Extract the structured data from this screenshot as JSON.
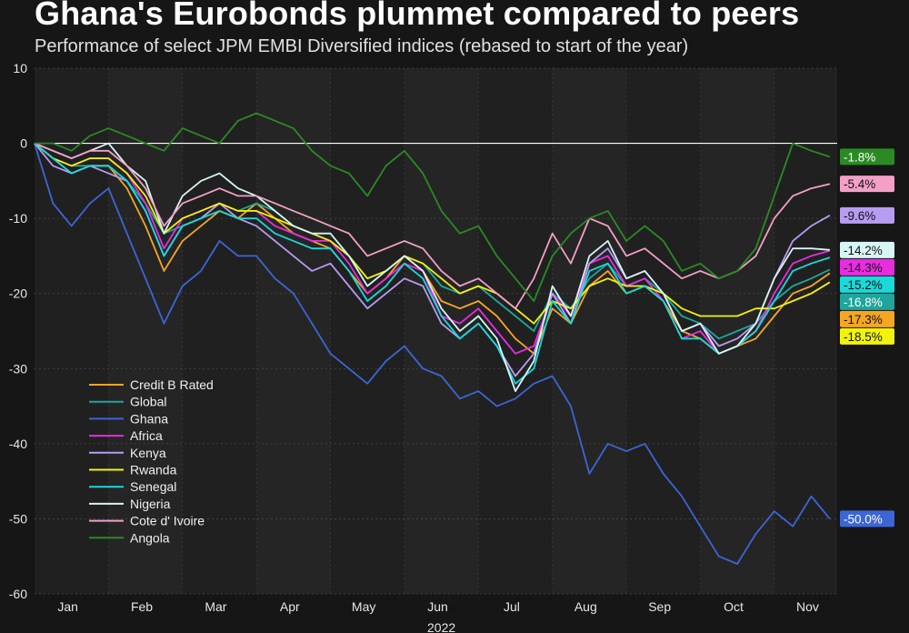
{
  "title": "Ghana's Eurobonds plummet compared to peers",
  "subtitle": "Performance of select JPM EMBI Diversified indices (rebased to start of the year)",
  "chart_data": {
    "type": "line",
    "title": "Ghana's Eurobonds plummet compared to peers",
    "subtitle": "Performance of select JPM EMBI Diversified indices (rebased to start of the year)",
    "xlabel": "2022",
    "ylabel": "",
    "x": [
      0,
      0.25,
      0.5,
      0.75,
      1,
      1.25,
      1.5,
      1.75,
      2,
      2.25,
      2.5,
      2.75,
      3,
      3.25,
      3.5,
      3.75,
      4,
      4.25,
      4.5,
      4.75,
      5,
      5.25,
      5.5,
      5.75,
      6,
      6.25,
      6.5,
      6.75,
      7,
      7.25,
      7.5,
      7.75,
      8,
      8.25,
      8.5,
      8.75,
      9,
      9.25,
      9.5,
      9.75,
      10,
      10.25,
      10.5,
      10.75
    ],
    "xlim": [
      0,
      10.85
    ],
    "ylim": [
      -60,
      10
    ],
    "yticks": [
      10,
      0,
      -10,
      -20,
      -30,
      -40,
      -50,
      -60
    ],
    "month_ticks": [
      {
        "label": "Jan",
        "pos": 0.45
      },
      {
        "label": "Feb",
        "pos": 1.45
      },
      {
        "label": "Mar",
        "pos": 2.45
      },
      {
        "label": "Apr",
        "pos": 3.45
      },
      {
        "label": "May",
        "pos": 4.45
      },
      {
        "label": "Jun",
        "pos": 5.45
      },
      {
        "label": "Jul",
        "pos": 6.45
      },
      {
        "label": "Aug",
        "pos": 7.45
      },
      {
        "label": "Sep",
        "pos": 8.45
      },
      {
        "label": "Oct",
        "pos": 9.45
      },
      {
        "label": "Nov",
        "pos": 10.45
      }
    ],
    "grid": true,
    "legend_position": "bottom-left",
    "series": [
      {
        "name": "Credit B Rated",
        "color": "#f5a623",
        "end_label": "-17.3%",
        "values": [
          0,
          -2,
          -4,
          -3,
          -3,
          -6,
          -11,
          -17,
          -13,
          -11,
          -9,
          -10,
          -8,
          -10,
          -12,
          -13,
          -14,
          -17,
          -20,
          -18,
          -15,
          -17,
          -21,
          -22,
          -21,
          -23,
          -26,
          -28,
          -22,
          -24,
          -19,
          -17,
          -20,
          -19,
          -21,
          -25,
          -26,
          -28,
          -27,
          -26,
          -23,
          -20,
          -19,
          -17.3
        ]
      },
      {
        "name": "Global",
        "color": "#1fa59b",
        "end_label": "-16.8%",
        "values": [
          0,
          -2,
          -3,
          -3,
          -3,
          -5,
          -8,
          -12,
          -11,
          -10,
          -8,
          -9,
          -8,
          -9,
          -11,
          -12,
          -13,
          -15,
          -18,
          -17,
          -15,
          -16,
          -19,
          -20,
          -19,
          -21,
          -23,
          -25,
          -20,
          -22,
          -18,
          -16,
          -19,
          -18,
          -20,
          -23,
          -24,
          -26,
          -25,
          -24,
          -21,
          -19,
          -18,
          -16.8
        ]
      },
      {
        "name": "Ghana",
        "color": "#3c66d6",
        "end_label": "-50.0%",
        "values": [
          0,
          -8,
          -11,
          -8,
          -6,
          -12,
          -18,
          -24,
          -19,
          -17,
          -13,
          -15,
          -15,
          -18,
          -20,
          -24,
          -28,
          -30,
          -32,
          -29,
          -27,
          -30,
          -31,
          -34,
          -33,
          -35,
          -34,
          -32,
          -31,
          -35,
          -44,
          -40,
          -41,
          -40,
          -44,
          -47,
          -51,
          -55,
          -56,
          -52,
          -49,
          -51,
          -47,
          -50.0
        ]
      },
      {
        "name": "Africa",
        "color": "#e82ce0",
        "end_label": "-14.3%",
        "values": [
          0,
          -2,
          -3,
          -2,
          -2,
          -4,
          -8,
          -14,
          -10,
          -9,
          -8,
          -9,
          -9,
          -11,
          -12,
          -13,
          -13,
          -16,
          -20,
          -18,
          -16,
          -17,
          -23,
          -24,
          -22,
          -25,
          -28,
          -27,
          -20,
          -23,
          -16,
          -15,
          -19,
          -18,
          -21,
          -26,
          -25,
          -28,
          -27,
          -25,
          -20,
          -16,
          -15,
          -14.3
        ]
      },
      {
        "name": "Kenya",
        "color": "#b79cf2",
        "end_label": "-9.6%",
        "values": [
          0,
          -3,
          -4,
          -3,
          -4,
          -5,
          -9,
          -15,
          -11,
          -10,
          -8,
          -10,
          -11,
          -13,
          -15,
          -17,
          -16,
          -19,
          -22,
          -20,
          -18,
          -19,
          -24,
          -26,
          -24,
          -27,
          -31,
          -28,
          -20,
          -24,
          -16,
          -14,
          -18,
          -17,
          -20,
          -25,
          -24,
          -27,
          -26,
          -24,
          -18,
          -13,
          -11,
          -9.6
        ]
      },
      {
        "name": "Rwanda",
        "color": "#f2f20c",
        "end_label": "-18.5%",
        "values": [
          0,
          -2,
          -3,
          -2,
          -2,
          -4,
          -7,
          -12,
          -10,
          -9,
          -8,
          -9,
          -9,
          -10,
          -11,
          -12,
          -13,
          -15,
          -18,
          -17,
          -15,
          -16,
          -18,
          -20,
          -19,
          -20,
          -22,
          -24,
          -21,
          -22,
          -19,
          -18,
          -19,
          -19,
          -20,
          -22,
          -23,
          -23,
          -23,
          -22,
          -22,
          -21,
          -20,
          -18.5
        ]
      },
      {
        "name": "Senegal",
        "color": "#19d9d9",
        "end_label": "-15.2%",
        "values": [
          0,
          -2,
          -4,
          -3,
          -3,
          -5,
          -9,
          -15,
          -11,
          -10,
          -9,
          -10,
          -10,
          -12,
          -13,
          -14,
          -14,
          -17,
          -21,
          -19,
          -16,
          -18,
          -23,
          -26,
          -24,
          -27,
          -32,
          -30,
          -21,
          -24,
          -17,
          -16,
          -20,
          -19,
          -21,
          -26,
          -26,
          -28,
          -27,
          -25,
          -21,
          -17,
          -16,
          -15.2
        ]
      },
      {
        "name": "Nigeria",
        "color": "#d8f5f5",
        "end_label": "-14.2%",
        "values": [
          0,
          -1,
          -2,
          -1,
          0,
          -3,
          -5,
          -12,
          -7,
          -5,
          -4,
          -6,
          -7,
          -9,
          -11,
          -12,
          -12,
          -15,
          -19,
          -17,
          -15,
          -17,
          -22,
          -25,
          -23,
          -26,
          -33,
          -29,
          -19,
          -23,
          -15,
          -13,
          -18,
          -17,
          -20,
          -25,
          -24,
          -28,
          -27,
          -24,
          -18,
          -14,
          -14,
          -14.2
        ]
      },
      {
        "name": "Cote d' Ivoire",
        "color": "#f2a0c8",
        "end_label": "-5.4%",
        "values": [
          0,
          -1,
          -2,
          -1,
          -1,
          -3,
          -6,
          -11,
          -8,
          -7,
          -6,
          -7,
          -7,
          -8,
          -9,
          -10,
          -11,
          -12,
          -15,
          -14,
          -13,
          -14,
          -17,
          -19,
          -18,
          -20,
          -22,
          -18,
          -12,
          -16,
          -10,
          -11,
          -15,
          -14,
          -16,
          -18,
          -17,
          -18,
          -17,
          -15,
          -10,
          -7,
          -6,
          -5.4
        ]
      },
      {
        "name": "Angola",
        "color": "#2b8a23",
        "end_label": "-1.8%",
        "values": [
          0,
          0,
          -1,
          1,
          2,
          1,
          0,
          -1,
          2,
          1,
          0,
          3,
          4,
          3,
          2,
          -1,
          -3,
          -4,
          -7,
          -3,
          -1,
          -4,
          -9,
          -12,
          -11,
          -15,
          -18,
          -21,
          -15,
          -12,
          -10,
          -9,
          -13,
          -11,
          -13,
          -17,
          -16,
          -18,
          -17,
          -14,
          -7,
          0,
          -1,
          -1.8
        ]
      }
    ]
  }
}
